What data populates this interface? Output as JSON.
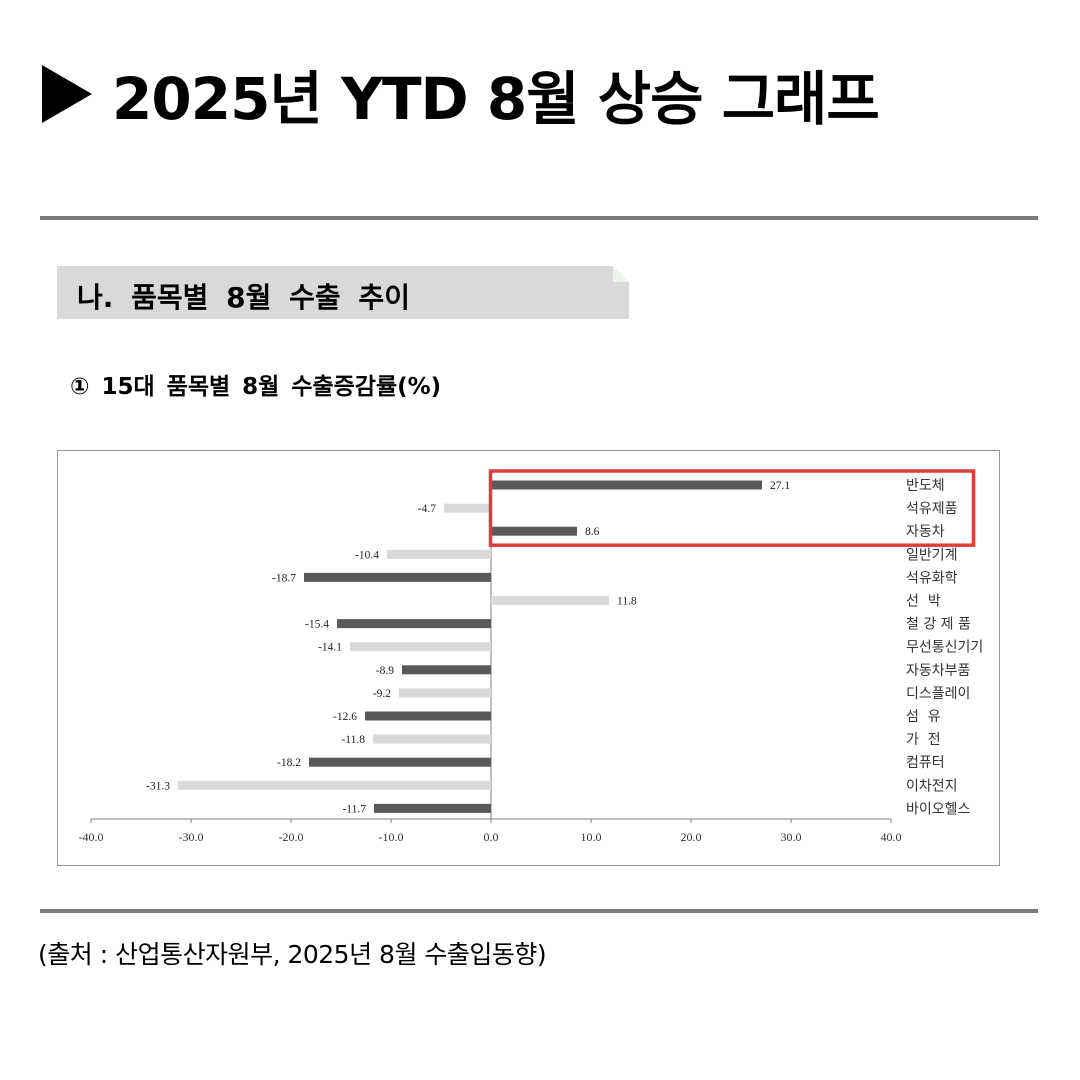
{
  "header": {
    "title": "2025년 YTD 8월 상승 그래프"
  },
  "section": {
    "label": "나.  품목별  8월  수출  추이"
  },
  "chart_heading": "①  15대  품목별  8월  수출증감률(%)",
  "source": "(출처 : 산업통산자원부, 2025년 8월 수출입동향)",
  "colors": {
    "dark_bar": "#595959",
    "light_bar": "#d9d9d9",
    "highlight": "#e03c3c"
  },
  "chart_data": {
    "type": "bar",
    "orientation": "horizontal",
    "categories": [
      "반도체",
      "석유제품",
      "자동차",
      "일반기계",
      "석유화학",
      "선  박",
      "철 강 제 품",
      "무선통신기기",
      "자동차부품",
      "디스플레이",
      "섬  유",
      "가  전",
      "컴퓨터",
      "이차전지",
      "바이오헬스"
    ],
    "values": [
      27.1,
      -4.7,
      8.6,
      -10.4,
      -18.7,
      11.8,
      -15.4,
      -14.1,
      -8.9,
      -9.2,
      -12.6,
      -11.8,
      -18.2,
      -31.3,
      -11.7
    ],
    "value_labels": [
      "27.1",
      "-4.7",
      "8.6",
      "-10.4",
      "-18.7",
      "11.8",
      "-15.4",
      "-14.1",
      "-8.9",
      "-9.2",
      "-12.6",
      "-11.8",
      "-18.2",
      "-31.3",
      "-11.7"
    ],
    "bar_shade": [
      "dark",
      "light",
      "dark",
      "light",
      "dark",
      "light",
      "dark",
      "light",
      "dark",
      "light",
      "dark",
      "light",
      "dark",
      "light",
      "dark"
    ],
    "xlim": [
      -40,
      40
    ],
    "xticks": [
      "-40.0",
      "-30.0",
      "-20.0",
      "-10.0",
      "0.0",
      "10.0",
      "20.0",
      "30.0",
      "40.0"
    ],
    "highlighted_categories": [
      "반도체",
      "석유제품",
      "자동차"
    ]
  }
}
